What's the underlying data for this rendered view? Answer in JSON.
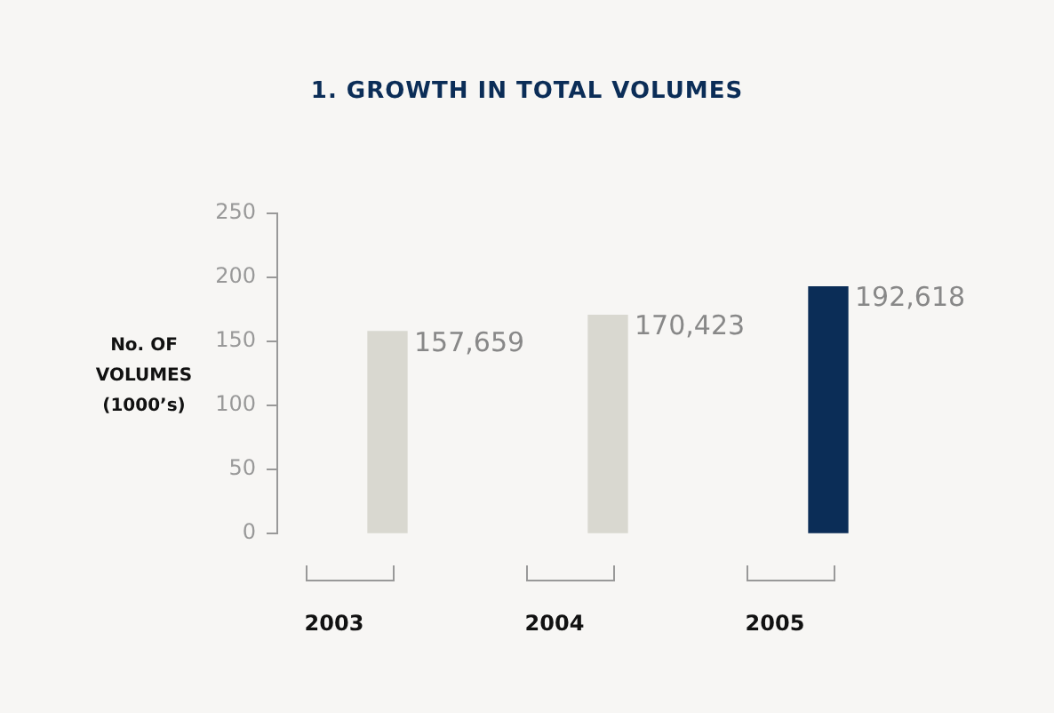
{
  "chart_data": {
    "type": "bar",
    "title": "1. GROWTH IN TOTAL VOLUMES",
    "ylabel": "No. OF VOLUMES (1000’s)",
    "categories": [
      "2003",
      "2004",
      "2005"
    ],
    "values": [
      157.659,
      170.423,
      192.618
    ],
    "colors": [
      "#d9d8d0",
      "#d9d8d0",
      "#0b2d57"
    ],
    "annotations": [
      "157,659",
      "170,423",
      "192,618"
    ],
    "ylim": [
      0,
      250
    ],
    "yticks": [
      0,
      50,
      100,
      150,
      200,
      250
    ],
    "grid": false,
    "legend": false
  }
}
